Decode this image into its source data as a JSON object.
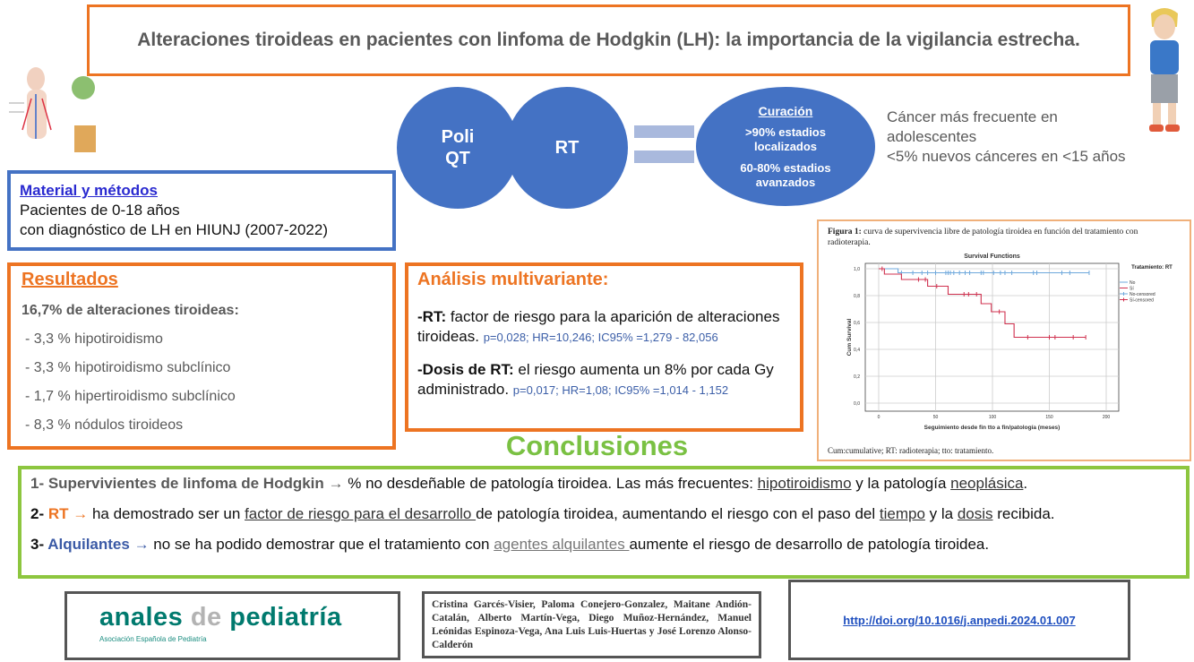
{
  "title": "Alteraciones tiroideas en pacientes con linfoma de Hodgkin (LH): la importancia de la vigilancia estrecha.",
  "equation": {
    "circle1": "Poli QT",
    "circle2": "RT",
    "result_title": "Curación",
    "result_line1": ">90% estadios localizados",
    "result_line2": "60-80% estadios avanzados"
  },
  "facts": [
    "Cáncer más frecuente en",
    "adolescentes",
    "<5% nuevos cánceres en <15 años"
  ],
  "material": {
    "heading": "Material y métodos",
    "lines": [
      "Pacientes de 0-18 años",
      "con diagnóstico de LH en HIUNJ (2007-2022)"
    ]
  },
  "resultados": {
    "heading": "Resultados",
    "summary": "16,7% de alteraciones tiroideas:",
    "items": [
      "- 3,3 % hipotiroidismo",
      "- 3,3 % hipotiroidismo subclínico",
      "- 1,7 % hipertiroidismo subclínico",
      "- 8,3 % nódulos tiroideos"
    ]
  },
  "analisis": {
    "heading": "Análisis multivariante:",
    "rt_label": "-RT:",
    "rt_text": " factor de riesgo para la aparición de alteraciones tiroideas. ",
    "rt_stats": "p=0,028; HR=10,246; IC95% =1,279 - 82,056",
    "dosis_label": "-Dosis de RT:",
    "dosis_text": " el riesgo aumenta un 8% por cada Gy administrado. ",
    "dosis_stats": "p=0,017; HR=1,08; IC95% =1,014 - 1,152"
  },
  "figure": {
    "caption_label": "Figura 1:",
    "caption": " curva de supervivencia libre de patología tiroidea en función del tratamiento con radioterapia.",
    "footnote": "Cum:cumulative; RT: radioterapia; tto: tratamiento."
  },
  "chart_data": {
    "type": "line",
    "title": "Survival Functions",
    "xlabel": "Seguimiento desde fin tto a fin/patología (meses)",
    "ylabel": "Cum Survival",
    "xlim": [
      0,
      200
    ],
    "ylim": [
      0,
      1.0
    ],
    "xticks": [
      "0",
      "50",
      "100",
      "150",
      "200"
    ],
    "yticks": [
      "0,0",
      "0,2",
      "0,4",
      "0,6",
      "0,8",
      "1,0"
    ],
    "grid": true,
    "legend_title": "Tratamiento: RT",
    "legend_position": "right",
    "legend": [
      "No",
      "Sí",
      "No-censored",
      "Sí-censored"
    ],
    "series": [
      {
        "name": "No",
        "color": "#6fa8dc",
        "steps": [
          [
            0,
            1.0
          ],
          [
            17,
            0.97
          ],
          [
            185,
            0.97
          ]
        ],
        "censored": [
          20,
          30,
          38,
          43,
          50,
          59,
          61,
          63,
          66,
          71,
          76,
          80,
          90,
          92,
          101,
          107,
          111,
          117,
          136,
          139,
          161,
          168,
          185
        ]
      },
      {
        "name": "Sí",
        "color": "#d0314f",
        "steps": [
          [
            0,
            1.0
          ],
          [
            5,
            0.96
          ],
          [
            20,
            0.92
          ],
          [
            43,
            0.87
          ],
          [
            61,
            0.81
          ],
          [
            90,
            0.74
          ],
          [
            99,
            0.68
          ],
          [
            111,
            0.59
          ],
          [
            119,
            0.49
          ],
          [
            182,
            0.49
          ]
        ],
        "censored": [
          3,
          35,
          41,
          51,
          75,
          79,
          86,
          106,
          131,
          150,
          155,
          171,
          182
        ]
      }
    ]
  },
  "conclusiones": {
    "heading": "Conclusiones",
    "c1": {
      "lead": "1- Supervivientes de linfoma de Hodgkin → ",
      "t1": "% no desdeñable de patología tiroidea. Las más frecuentes: ",
      "u1": "hipotiroidismo",
      "t2": " y la patología ",
      "u2": "neoplásica",
      "t3": "."
    },
    "c2": {
      "num": "2- ",
      "key": "RT",
      "arrow": " → ",
      "t1": "ha demostrado ser un ",
      "u1": "factor de riesgo para el desarrollo ",
      "t2": "de patología tiroidea, aumentando el riesgo con el paso del ",
      "u2": "tiempo",
      "t3": " y la ",
      "u3": "dosis",
      "t4": " recibida."
    },
    "c3": {
      "num": "3- ",
      "key": "Alquilantes",
      "arrow": " → ",
      "t1": "no se ha podido demostrar que el tratamiento con ",
      "u1": "agentes alquilantes ",
      "t2": "aumente el riesgo de desarrollo de patología tiroidea."
    }
  },
  "logo": {
    "name_part1": "anales ",
    "name_part2": "de",
    "name_part3": " pediatría",
    "subtitle": "Asociación Española de Pediatría"
  },
  "authors": "Cristina Garcés-Visier, Paloma Conejero-Gonzalez, Maitane Andión-Catalán, Alberto Martín-Vega, Diego Muñoz-Hernández, Manuel Leónidas Espinoza-Vega, Ana Luis Luis-Huertas y José Lorenzo Alonso-Calderón",
  "doi_link": "http://doi.org/10.1016/j.anpedi.2024.01.007",
  "colors": {
    "orange": "#ed7422",
    "blue": "#4472c4",
    "green": "#8dc63f",
    "teal": "#007a6e"
  }
}
